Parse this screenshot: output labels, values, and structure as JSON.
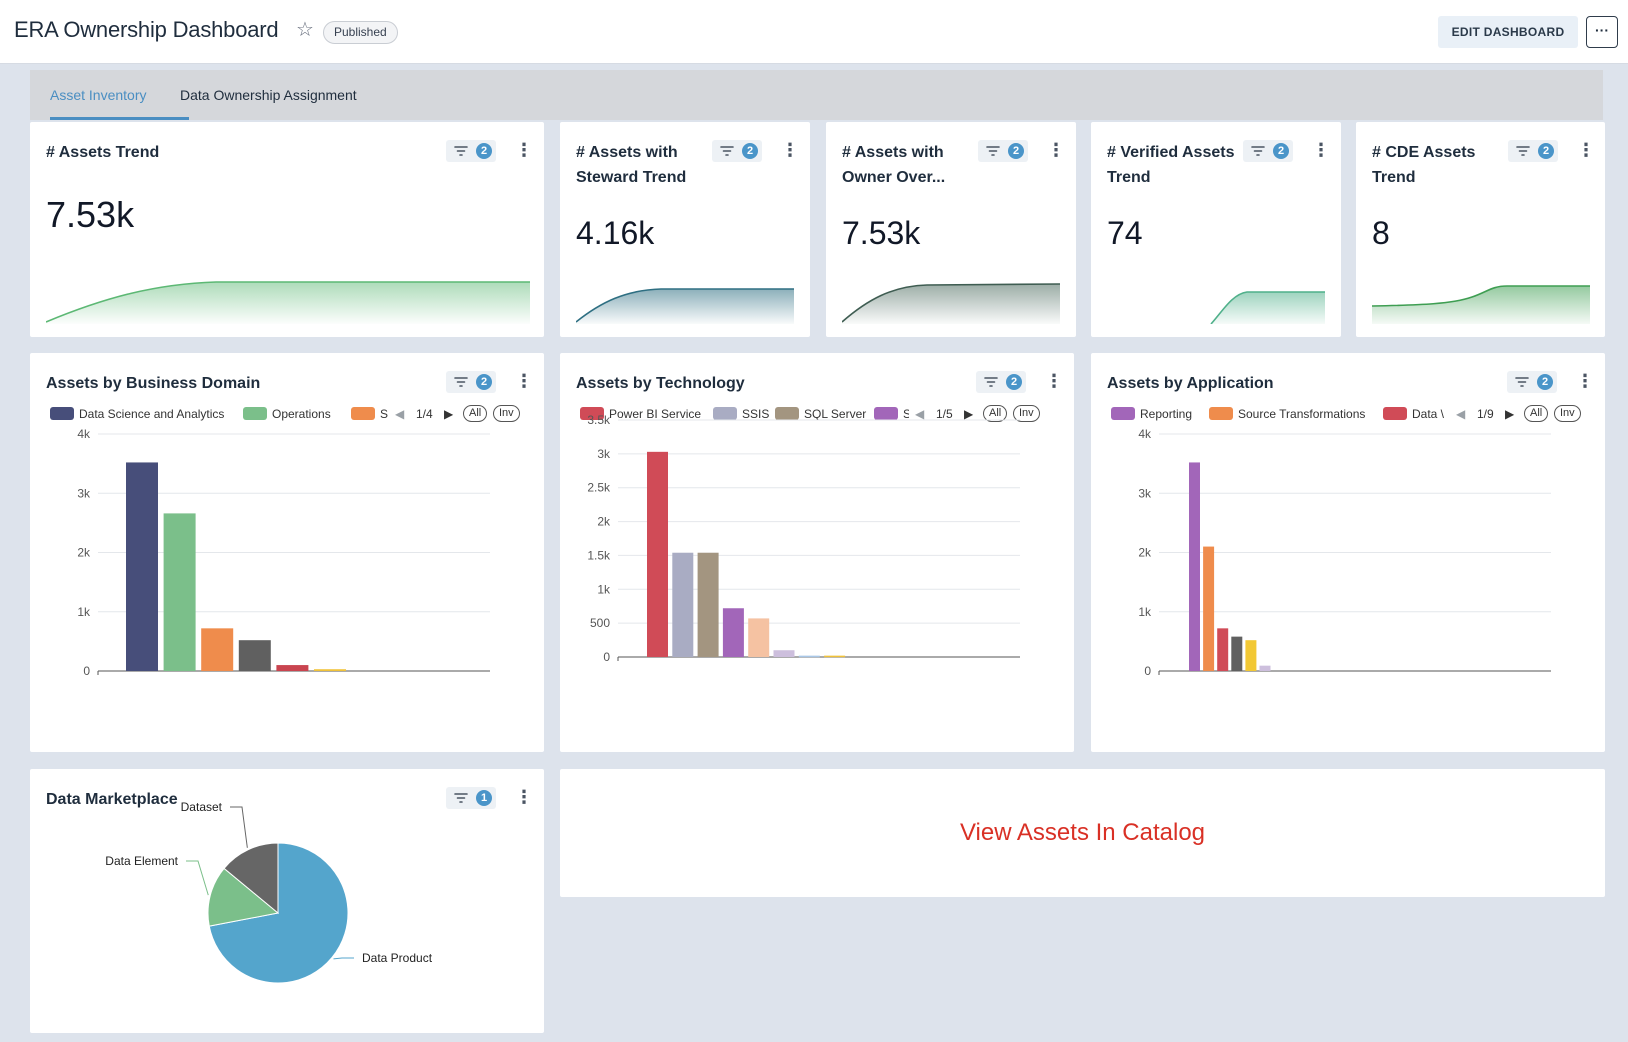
{
  "header": {
    "title": "ERA Ownership Dashboard",
    "status_badge": "Published",
    "edit_button": "EDIT DASHBOARD",
    "more_button": "···"
  },
  "tabs": [
    {
      "label": "Asset Inventory",
      "active": true
    },
    {
      "label": "Data Ownership Assignment",
      "active": false
    }
  ],
  "kpis": [
    {
      "title": "# Assets Trend",
      "value": "7.53k",
      "filter_count": "2",
      "color": "#5cb874"
    },
    {
      "title": "# Assets with Steward Trend",
      "value": "4.16k",
      "filter_count": "2",
      "color": "#2e6f82"
    },
    {
      "title": "# Assets with Owner Over...",
      "value": "7.53k",
      "filter_count": "2",
      "color": "#4b6a5e"
    },
    {
      "title": "# Verified Assets Trend",
      "value": "74",
      "filter_count": "2",
      "color": "#4fb08a"
    },
    {
      "title": "# CDE Assets Trend",
      "value": "8",
      "filter_count": "2",
      "color": "#3e9e52"
    }
  ],
  "charts": {
    "domain": {
      "title": "Assets by Business Domain",
      "filter_count": "2",
      "legend": [
        {
          "label": "Data Science and Analytics",
          "color": "#474e7a"
        },
        {
          "label": "Operations",
          "color": "#7bbf8a"
        },
        {
          "label": "S",
          "color": "#ef8c4c"
        }
      ],
      "page": "1/4",
      "all_label": "All",
      "inv_label": "Inv"
    },
    "technology": {
      "title": "Assets by Technology",
      "filter_count": "2",
      "legend": [
        {
          "label": "Power BI Service",
          "color": "#d04b57"
        },
        {
          "label": "SSIS",
          "color": "#a9acc3"
        },
        {
          "label": "SQL Server",
          "color": "#a39580"
        },
        {
          "label": "S",
          "color": "#a266b9"
        }
      ],
      "page": "1/5",
      "all_label": "All",
      "inv_label": "Inv"
    },
    "application": {
      "title": "Assets by Application",
      "filter_count": "2",
      "legend": [
        {
          "label": "Reporting",
          "color": "#a266b9"
        },
        {
          "label": "Source Transformations",
          "color": "#ef8c4c"
        },
        {
          "label": "Data \\",
          "color": "#d04b57"
        }
      ],
      "page": "1/9",
      "all_label": "All",
      "inv_label": "Inv"
    },
    "marketplace": {
      "title": "Data Marketplace",
      "filter_count": "1"
    }
  },
  "catalog_link": "View Assets In Catalog",
  "chart_data": [
    {
      "type": "bar",
      "title": "Assets by Business Domain",
      "ylim": [
        0,
        4000
      ],
      "yticks": [
        "0",
        "1k",
        "2k",
        "3k",
        "4k"
      ],
      "values": [
        3520,
        2660,
        720,
        520,
        100,
        30
      ],
      "colors": [
        "#474e7a",
        "#7bbf8a",
        "#ef8c4c",
        "#606060",
        "#c9444f",
        "#f0c239"
      ],
      "categories": [
        "Data Science and Analytics",
        "Operations",
        "S",
        "",
        "",
        ""
      ]
    },
    {
      "type": "bar",
      "title": "Assets by Technology",
      "ylim": [
        0,
        3500
      ],
      "yticks": [
        "0",
        "500",
        "1k",
        "1.5k",
        "2k",
        "2.5k",
        "3k",
        "3.5k"
      ],
      "values": [
        3030,
        1540,
        1540,
        720,
        570,
        100,
        20,
        20
      ],
      "colors": [
        "#d04b57",
        "#a9acc3",
        "#a39580",
        "#a266b9",
        "#f5c2a2",
        "#cdbfdd",
        "#a9c7e7",
        "#f0c239"
      ],
      "categories": [
        "Power BI Service",
        "SSIS",
        "SQL Server",
        "S",
        "",
        "",
        "",
        ""
      ]
    },
    {
      "type": "bar",
      "title": "Assets by Application",
      "ylim": [
        0,
        4000
      ],
      "yticks": [
        "0",
        "1k",
        "2k",
        "3k",
        "4k"
      ],
      "values": [
        3520,
        2100,
        720,
        580,
        520,
        90
      ],
      "colors": [
        "#a266b9",
        "#ef8c4c",
        "#d04b57",
        "#606060",
        "#f2c834",
        "#cdbfdd"
      ],
      "categories": [
        "Reporting",
        "Source Transformations",
        "Data \\",
        "",
        "",
        ""
      ]
    },
    {
      "type": "pie",
      "title": "Data Marketplace",
      "slices": [
        {
          "label": "Data Product",
          "value": 72,
          "color": "#54a5cc"
        },
        {
          "label": "Data Element",
          "value": 14,
          "color": "#7bbf8a"
        },
        {
          "label": "Dataset",
          "value": 14,
          "color": "#666666"
        }
      ]
    }
  ]
}
